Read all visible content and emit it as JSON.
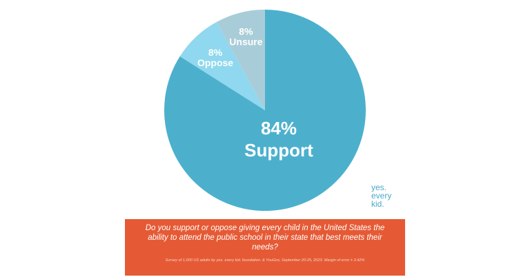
{
  "chart_data": {
    "type": "pie",
    "categories": [
      "Support",
      "Oppose",
      "Unsure"
    ],
    "values": [
      84,
      8,
      8
    ],
    "labels": [
      {
        "pct": "84%",
        "name": "Support"
      },
      {
        "pct": "8%",
        "name": "Oppose"
      },
      {
        "pct": "8%",
        "name": "Unsure"
      }
    ],
    "colors": [
      "#4cb0cd",
      "#8fd8ef",
      "#a9cdd8"
    ],
    "start": "12 o'clock",
    "direction": "clockwise",
    "legend": "none (labels on slices)"
  },
  "logo": {
    "line1": "yes.",
    "line2": "every",
    "line3": "kid."
  },
  "banner": {
    "question": "Do you support or oppose giving every child in the United States the ability to attend the public school in their state that best meets their needs?",
    "footnote": "Survey of 1,000 US adults by yes. every kid. foundation. & YouGov, September 20-25, 2023. Margin of error ± 3.42%"
  },
  "colors": {
    "banner": "#e55a35",
    "logo": "#4aa8c9"
  }
}
